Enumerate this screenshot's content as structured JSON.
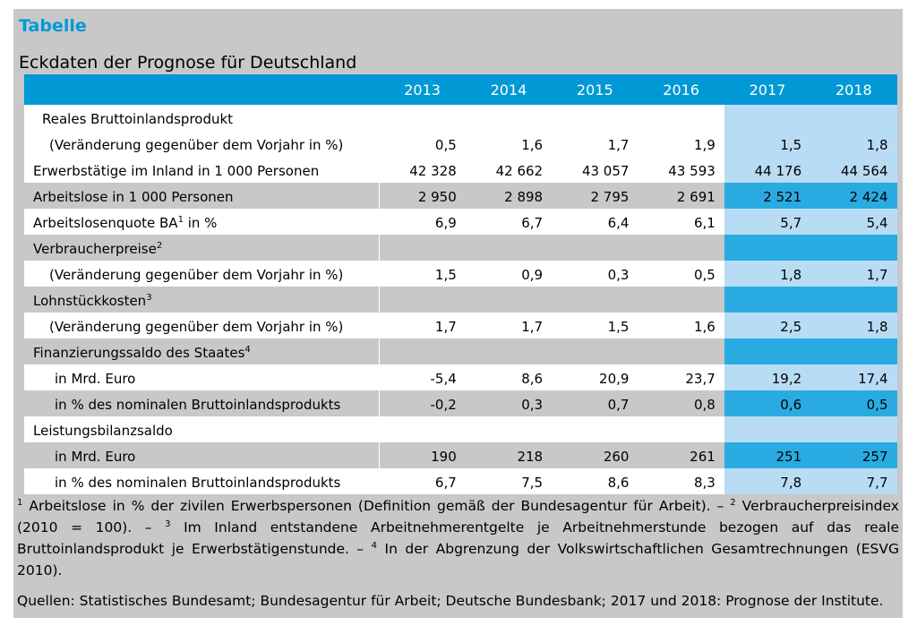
{
  "header": {
    "label": "Tabelle",
    "title": "Eckdaten der Prognose für Deutschland"
  },
  "table": {
    "years": [
      "2013",
      "2014",
      "2015",
      "2016",
      "2017",
      "2018"
    ],
    "rows": [
      {
        "label": "Reales Bruttoinlandsprodukt",
        "sup": "",
        "values": [
          "",
          "",
          "",
          "",
          "",
          ""
        ]
      },
      {
        "label": "(Veränderung gegenüber dem Vorjahr in %)",
        "sup": "",
        "values": [
          "0,5",
          "1,6",
          "1,7",
          "1,9",
          "1,5",
          "1,8"
        ]
      },
      {
        "label": "Erwerbstätige im Inland in 1 000 Personen",
        "sup": "",
        "values": [
          "42 328",
          "42 662",
          "43 057",
          "43 593",
          "44 176",
          "44 564"
        ]
      },
      {
        "label": "Arbeitslose in 1 000 Personen",
        "sup": "",
        "values": [
          "2 950",
          "2 898",
          "2 795",
          "2 691",
          "2 521",
          "2 424"
        ]
      },
      {
        "label": "Arbeitslosenquote BA",
        "sup": "1",
        "suffix": " in %",
        "values": [
          "6,9",
          "6,7",
          "6,4",
          "6,1",
          "5,7",
          "5,4"
        ]
      },
      {
        "label": "Verbraucherpreise",
        "sup": "2",
        "values": [
          "",
          "",
          "",
          "",
          "",
          ""
        ]
      },
      {
        "label": "(Veränderung gegenüber dem Vorjahr in %)",
        "sup": "",
        "values": [
          "1,5",
          "0,9",
          "0,3",
          "0,5",
          "1,8",
          "1,7"
        ]
      },
      {
        "label": "Lohnstückkosten",
        "sup": "3",
        "values": [
          "",
          "",
          "",
          "",
          "",
          ""
        ]
      },
      {
        "label": "(Veränderung gegenüber dem Vorjahr in %)",
        "sup": "",
        "values": [
          "1,7",
          "1,7",
          "1,5",
          "1,6",
          "2,5",
          "1,8"
        ]
      },
      {
        "label": "Finanzierungssaldo des Staates",
        "sup": "4",
        "values": [
          "",
          "",
          "",
          "",
          "",
          ""
        ]
      },
      {
        "label": "in Mrd. Euro",
        "sup": "",
        "values": [
          "-5,4",
          "8,6",
          "20,9",
          "23,7",
          "19,2",
          "17,4"
        ]
      },
      {
        "label": "in % des nominalen Bruttoinlandsprodukts",
        "sup": "",
        "values": [
          "-0,2",
          "0,3",
          "0,7",
          "0,8",
          "0,6",
          "0,5"
        ]
      },
      {
        "label": "Leistungsbilanzsaldo",
        "sup": "",
        "values": [
          "",
          "",
          "",
          "",
          "",
          ""
        ]
      },
      {
        "label": "in Mrd. Euro",
        "sup": "",
        "values": [
          "190",
          "218",
          "260",
          "261",
          "251",
          "257"
        ]
      },
      {
        "label": "in % des nominalen Bruttoinlandsprodukts",
        "sup": "",
        "values": [
          "6,7",
          "7,5",
          "8,6",
          "8,3",
          "7,8",
          "7,7"
        ]
      }
    ]
  },
  "footnotes": {
    "f1_sup": "1",
    "f1_text": "Arbeitslose in % der zivilen Erwerbspersonen (Definition gemäß der Bundesagentur für Arbeit). –",
    "f2_sup": "2",
    "f2_text": "Verbraucherpreisindex (2010 = 100). –",
    "f3_sup": "3",
    "f3_text": "Im Inland entstandene Arbeitnehmerentgelte je Arbeitnehmerstunde bezogen auf das reale Bruttoinlandsprodukt je Erwerbstätigenstunde. –",
    "f4_sup": "4",
    "f4_text": "In der Abgrenzung der Volkswirtschaftlichen Gesamtrechnungen (ESVG 2010).",
    "sources": "Quellen: Statistisches Bundesamt; Bundesagentur für Arbeit; Deutsche Bundesbank; 2017 und 2018: Prognose der Institute."
  }
}
